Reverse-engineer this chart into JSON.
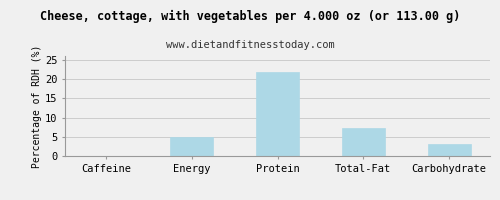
{
  "title": "Cheese, cottage, with vegetables per 4.000 oz (or 113.00 g)",
  "subtitle": "www.dietandfitnesstoday.com",
  "categories": [
    "Caffeine",
    "Energy",
    "Protein",
    "Total-Fat",
    "Carbohydrate"
  ],
  "values": [
    0,
    5.0,
    21.8,
    7.2,
    3.0
  ],
  "bar_color": "#add8e6",
  "bar_edge_color": "#add8e6",
  "ylabel": "Percentage of RDH (%)",
  "ylim": [
    0,
    26
  ],
  "yticks": [
    0,
    5,
    10,
    15,
    20,
    25
  ],
  "background_color": "#f0f0f0",
  "grid_color": "#cccccc",
  "title_fontsize": 8.5,
  "subtitle_fontsize": 7.5,
  "ylabel_fontsize": 7,
  "tick_fontsize": 7.5
}
